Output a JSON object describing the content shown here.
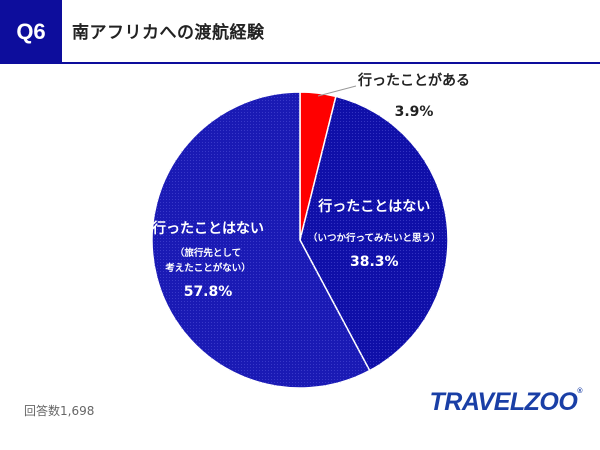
{
  "header": {
    "badge": "Q6",
    "title": "南アフリカへの渡航経験"
  },
  "chart_data": {
    "type": "pie",
    "start_angle_deg": 0,
    "direction": "clockwise",
    "slices": [
      {
        "label": "行ったことがある",
        "sublabel": "",
        "value": 3.9,
        "value_text": "3.9%",
        "color": "#ff0000"
      },
      {
        "label": "行ったことはない",
        "sublabel": "（いつか行ってみたいと思う）",
        "value": 38.3,
        "value_text": "38.3%",
        "color": "#0f0fa8"
      },
      {
        "label": "行ったことはない",
        "sublabel_lines": [
          "（旅行先として",
          "考えたことがない）"
        ],
        "value": 57.8,
        "value_text": "57.8%",
        "color": "#1a1ab4"
      }
    ]
  },
  "footer": {
    "respondents": "回答数1,698",
    "logo": "TRAVELZOO",
    "logo_mark": "®"
  }
}
